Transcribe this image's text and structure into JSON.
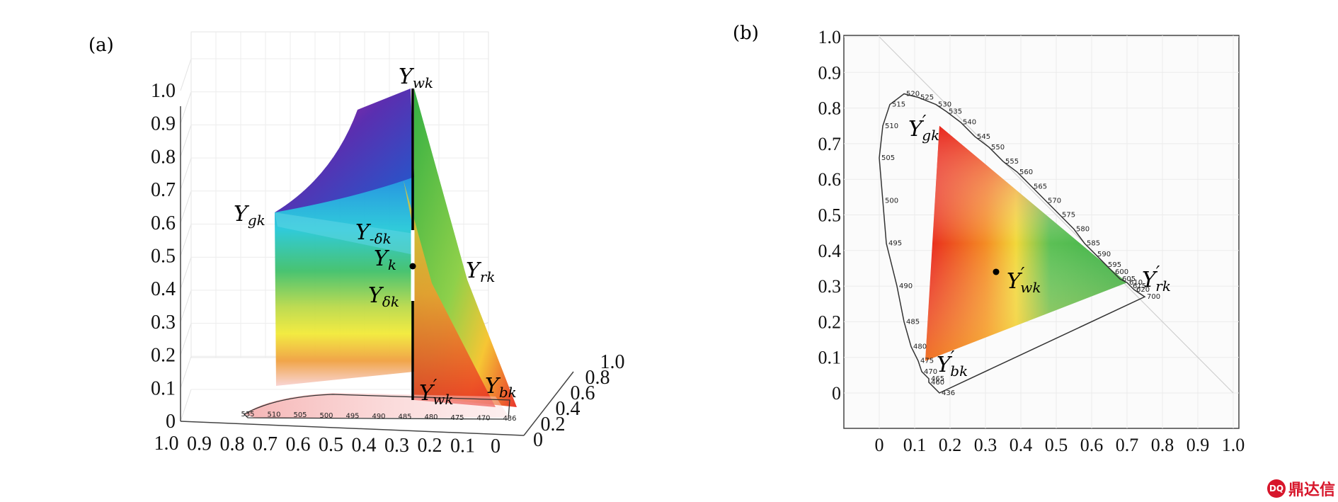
{
  "panel_a": {
    "label": "(a)",
    "z_ticks": [
      "0",
      "0.1",
      "0.2",
      "0.3",
      "0.4",
      "0.5",
      "0.6",
      "0.7",
      "0.8",
      "0.9",
      "1.0"
    ],
    "x_ticks": [
      "1.0",
      "0.9",
      "0.8",
      "0.7",
      "0.6",
      "0.5",
      "0.4",
      "0.3",
      "0.2",
      "0.1",
      "0"
    ],
    "y_ticks": [
      "0",
      "0.2",
      "0.4",
      "0.6",
      "0.8",
      "1.0"
    ],
    "wavelengths": [
      "535",
      "510",
      "505",
      "500",
      "495",
      "490",
      "485",
      "480",
      "475",
      "470",
      "436"
    ],
    "labels": {
      "Ywk": {
        "main": "Y",
        "sub": "wk"
      },
      "Ygk": {
        "main": "Y",
        "sub": "gk"
      },
      "Ydk1": {
        "main": "Y",
        "sub": "-δk"
      },
      "Yk": {
        "main": "Y",
        "sub": "k"
      },
      "Ydk2": {
        "main": "Y",
        "sub": "δk"
      },
      "Yrk": {
        "main": "Y",
        "sub": "rk"
      },
      "Ywk_p": {
        "main": "Y",
        "prime": "′",
        "sub": "wk"
      },
      "Ybk": {
        "main": "Y",
        "sub": "bk"
      }
    }
  },
  "panel_b": {
    "label": "(b)",
    "y_ticks": [
      "0",
      "0.1",
      "0.2",
      "0.3",
      "0.4",
      "0.5",
      "0.6",
      "0.7",
      "0.8",
      "0.9",
      "1.0"
    ],
    "x_ticks": [
      "0",
      "0.1",
      "0.2",
      "0.3",
      "0.4",
      "0.5",
      "0.6",
      "0.7",
      "0.8",
      "0.9",
      "1.0"
    ],
    "locus": [
      {
        "nm": "436",
        "x": 0.17,
        "y": 0.0
      },
      {
        "nm": "460",
        "x": 0.14,
        "y": 0.03
      },
      {
        "nm": "465",
        "x": 0.14,
        "y": 0.04
      },
      {
        "nm": "470",
        "x": 0.12,
        "y": 0.06
      },
      {
        "nm": "475",
        "x": 0.11,
        "y": 0.09
      },
      {
        "nm": "480",
        "x": 0.09,
        "y": 0.13
      },
      {
        "nm": "485",
        "x": 0.07,
        "y": 0.2
      },
      {
        "nm": "490",
        "x": 0.05,
        "y": 0.3
      },
      {
        "nm": "495",
        "x": 0.02,
        "y": 0.42
      },
      {
        "nm": "500",
        "x": 0.01,
        "y": 0.54
      },
      {
        "nm": "505",
        "x": 0.0,
        "y": 0.66
      },
      {
        "nm": "510",
        "x": 0.01,
        "y": 0.75
      },
      {
        "nm": "515",
        "x": 0.03,
        "y": 0.81
      },
      {
        "nm": "520",
        "x": 0.07,
        "y": 0.84
      },
      {
        "nm": "525",
        "x": 0.11,
        "y": 0.83
      },
      {
        "nm": "530",
        "x": 0.16,
        "y": 0.81
      },
      {
        "nm": "535",
        "x": 0.19,
        "y": 0.79
      },
      {
        "nm": "540",
        "x": 0.23,
        "y": 0.76
      },
      {
        "nm": "545",
        "x": 0.27,
        "y": 0.72
      },
      {
        "nm": "550",
        "x": 0.31,
        "y": 0.69
      },
      {
        "nm": "555",
        "x": 0.35,
        "y": 0.65
      },
      {
        "nm": "560",
        "x": 0.39,
        "y": 0.62
      },
      {
        "nm": "565",
        "x": 0.43,
        "y": 0.58
      },
      {
        "nm": "570",
        "x": 0.47,
        "y": 0.54
      },
      {
        "nm": "575",
        "x": 0.51,
        "y": 0.5
      },
      {
        "nm": "580",
        "x": 0.55,
        "y": 0.46
      },
      {
        "nm": "585",
        "x": 0.58,
        "y": 0.42
      },
      {
        "nm": "590",
        "x": 0.61,
        "y": 0.39
      },
      {
        "nm": "595",
        "x": 0.64,
        "y": 0.36
      },
      {
        "nm": "600",
        "x": 0.66,
        "y": 0.34
      },
      {
        "nm": "605",
        "x": 0.68,
        "y": 0.32
      },
      {
        "nm": "610",
        "x": 0.7,
        "y": 0.31
      },
      {
        "nm": "615",
        "x": 0.71,
        "y": 0.3
      },
      {
        "nm": "620",
        "x": 0.72,
        "y": 0.29
      },
      {
        "nm": "700",
        "x": 0.75,
        "y": 0.27
      }
    ],
    "gamut": {
      "g": {
        "x": 0.17,
        "y": 0.75
      },
      "r": {
        "x": 0.7,
        "y": 0.31
      },
      "b": {
        "x": 0.13,
        "y": 0.09
      },
      "w": {
        "x": 0.33,
        "y": 0.34
      }
    },
    "labels": {
      "Ygk_p": {
        "main": "Y",
        "prime": "′",
        "sub": "gk"
      },
      "Ywk_p": {
        "main": "Y",
        "prime": "′",
        "sub": "wk"
      },
      "Yrk_p": {
        "main": "Y",
        "prime": "′",
        "sub": "rk"
      },
      "Ybk_p": {
        "main": "Y",
        "prime": "′",
        "sub": "bk"
      }
    }
  },
  "logo": {
    "icon": "DQ",
    "text": "鼎达信"
  }
}
